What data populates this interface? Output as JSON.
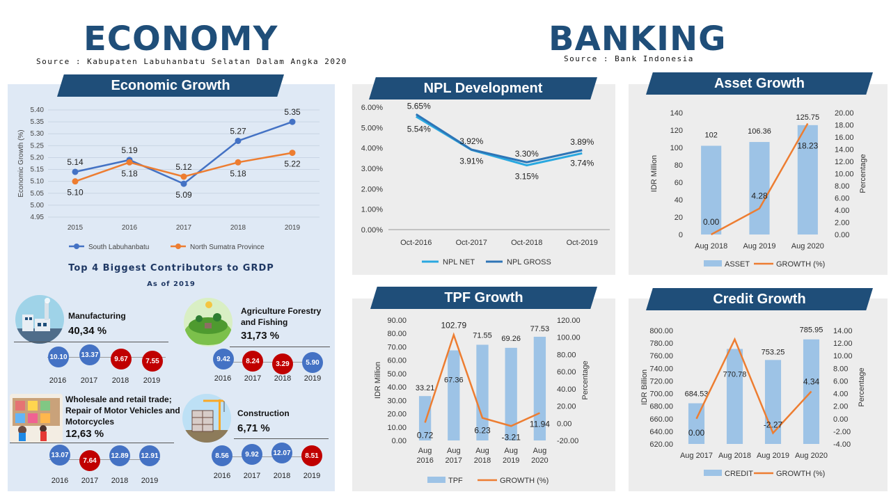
{
  "economy": {
    "title": "ECONOMY",
    "source": "Source : Kabupaten Labuhanbatu Selatan Dalam Angka 2020",
    "growth_banner": "Economic Growth",
    "contributors_title": "Top 4 Biggest Contributors to GRDP",
    "contributors_subtitle": "As of 2019",
    "contributors": [
      {
        "name": "Manufacturing",
        "pct": "40,34 %",
        "icon": "factory-icon",
        "values": [
          "10.10",
          "13.37",
          "9.67",
          "7.55"
        ],
        "colors": [
          "blue",
          "blue",
          "red",
          "red"
        ],
        "years": [
          "2016",
          "2017",
          "2018",
          "2019"
        ]
      },
      {
        "name": "Agriculture Forestry and Fishing",
        "pct": "31,73 %",
        "icon": "farm-icon",
        "values": [
          "9.42",
          "8.24",
          "3.29",
          "5.90"
        ],
        "colors": [
          "blue",
          "red",
          "red",
          "blue"
        ],
        "years": [
          "2016",
          "2017",
          "2018",
          "2019"
        ]
      },
      {
        "name": "Wholesale and retail trade; Repair of Motor Vehicles and Motorcycles",
        "pct": "12,63 %",
        "icon": "shop-icon",
        "values": [
          "13.07",
          "7.64",
          "12.89",
          "12.91"
        ],
        "colors": [
          "blue",
          "red",
          "blue",
          "blue"
        ],
        "years": [
          "2016",
          "2017",
          "2018",
          "2019"
        ]
      },
      {
        "name": "Construction",
        "pct": "6,71 %",
        "icon": "construction-icon",
        "values": [
          "8.56",
          "9.92",
          "12.07",
          "8.51"
        ],
        "colors": [
          "blue",
          "blue",
          "blue",
          "red"
        ],
        "years": [
          "2016",
          "2017",
          "2018",
          "2019"
        ]
      }
    ]
  },
  "banking": {
    "title": "BANKING",
    "source": "Source : Bank Indonesia",
    "npl_banner": "NPL Development",
    "asset_banner": "Asset Growth",
    "tpf_banner": "TPF Growth",
    "credit_banner": "Credit Growth"
  },
  "colors": {
    "navy": "#1f4e79",
    "blue": "#4472c4",
    "orange": "#ed7d31",
    "lightblue": "#9dc3e6",
    "cyan": "#29a8e0",
    "red": "#c00000"
  },
  "chart_data": [
    {
      "id": "economic-growth",
      "type": "line",
      "x": [
        "2015",
        "2016",
        "2017",
        "2018",
        "2019"
      ],
      "ylabel": "Economic Growth (%)",
      "ylim": [
        4.95,
        5.4
      ],
      "yticks": [
        "5.40",
        "5.35",
        "5.30",
        "5.25",
        "5.20",
        "5.15",
        "5.10",
        "5.05",
        "5.00",
        "4.95"
      ],
      "grid": true,
      "legend": "bottom",
      "series": [
        {
          "name": "South Labuhanbatu",
          "values": [
            5.14,
            5.19,
            5.09,
            5.27,
            5.35
          ],
          "labels": [
            "5.14",
            "5.19",
            "5.09",
            "5.27",
            "5.35"
          ],
          "color": "#4472c4"
        },
        {
          "name": "North Sumatra Province",
          "values": [
            5.1,
            5.18,
            5.12,
            5.18,
            5.22
          ],
          "labels": [
            "5.10",
            "5.18",
            "5.12",
            "5.18",
            "5.22"
          ],
          "color": "#ed7d31"
        }
      ]
    },
    {
      "id": "npl",
      "type": "line",
      "x": [
        "Oct-2016",
        "Oct-2017",
        "Oct-2018",
        "Oct-2019"
      ],
      "ylim": [
        0,
        6
      ],
      "yticks": [
        "6.00%",
        "5.00%",
        "4.00%",
        "3.00%",
        "2.00%",
        "1.00%",
        "0.00%"
      ],
      "legend": "bottom",
      "series": [
        {
          "name": "NPL NET",
          "values": [
            5.54,
            3.91,
            3.15,
            3.74
          ],
          "labels": [
            "5.54%",
            "3.91%",
            "3.15%",
            "3.74%"
          ],
          "color": "#29a8e0"
        },
        {
          "name": "NPL GROSS",
          "values": [
            5.65,
            3.92,
            3.3,
            3.89
          ],
          "labels": [
            "5.65%",
            "3.92%",
            "3.30%",
            "3.89%"
          ],
          "color": "#2e75b6"
        }
      ]
    },
    {
      "id": "asset",
      "type": "bar",
      "categories": [
        "Aug 2018",
        "Aug 2019",
        "Aug 2020"
      ],
      "ylabel": "IDR Million",
      "y2label": "Percentage",
      "ylim": [
        0,
        140
      ],
      "y2lim": [
        0,
        20
      ],
      "yticks": [
        "140",
        "120",
        "100",
        "80",
        "60",
        "40",
        "20",
        "0"
      ],
      "y2ticks": [
        "20.00",
        "18.00",
        "16.00",
        "14.00",
        "12.00",
        "10.00",
        "8.00",
        "6.00",
        "4.00",
        "2.00",
        "0.00"
      ],
      "legend": "bottom",
      "series": [
        {
          "name": "ASSET",
          "values": [
            102,
            106.36,
            125.75
          ],
          "labels": [
            "102",
            "106.36",
            "125.75"
          ]
        },
        {
          "name": "GROWTH (%)",
          "values": [
            0.0,
            4.28,
            18.23
          ],
          "labels": [
            "0.00",
            "4.28",
            "18.23"
          ]
        }
      ]
    },
    {
      "id": "tpf",
      "type": "bar",
      "categories": [
        "Aug 2016",
        "Aug 2017",
        "Aug 2018",
        "Aug 2019",
        "Aug 2020"
      ],
      "ylabel": "IDR Million",
      "y2label": "Percentage",
      "ylim": [
        0,
        90
      ],
      "y2lim": [
        -20,
        120
      ],
      "yticks": [
        "90.00",
        "80.00",
        "70.00",
        "60.00",
        "50.00",
        "40.00",
        "30.00",
        "20.00",
        "10.00",
        "0.00"
      ],
      "y2ticks": [
        "120.00",
        "100.00",
        "80.00",
        "60.00",
        "40.00",
        "20.00",
        "0.00",
        "-20.00"
      ],
      "legend": "bottom",
      "series": [
        {
          "name": "TPF",
          "values": [
            33.21,
            67.36,
            71.55,
            69.26,
            77.53
          ],
          "labels": [
            "33.21",
            "67.36",
            "71.55",
            "69.26",
            "77.53"
          ]
        },
        {
          "name": "GROWTH (%)",
          "values": [
            0.72,
            102.79,
            6.23,
            -3.21,
            11.94
          ],
          "labels": [
            "0.72",
            "102.79",
            "6.23",
            "-3.21",
            "11.94"
          ]
        }
      ]
    },
    {
      "id": "credit",
      "type": "bar",
      "categories": [
        "Aug 2017",
        "Aug 2018",
        "Aug 2019",
        "Aug 2020"
      ],
      "ylabel": "IDR Billion",
      "y2label": "Percentage",
      "ylim": [
        620,
        800
      ],
      "y2lim": [
        -4,
        14
      ],
      "yticks": [
        "800.00",
        "780.00",
        "760.00",
        "740.00",
        "720.00",
        "700.00",
        "680.00",
        "660.00",
        "640.00",
        "620.00"
      ],
      "y2ticks": [
        "14.00",
        "12.00",
        "10.00",
        "8.00",
        "6.00",
        "4.00",
        "2.00",
        "0.00",
        "-2.00",
        "-4.00"
      ],
      "legend": "bottom",
      "series": [
        {
          "name": "CREDIT",
          "values": [
            684.53,
            770.78,
            753.25,
            785.95
          ],
          "labels": [
            "684.53",
            "770.78",
            "753.25",
            "785.95"
          ]
        },
        {
          "name": "GROWTH (%)",
          "values": [
            0.0,
            12.6,
            -2.27,
            4.34
          ],
          "labels": [
            "0.00",
            "12.60",
            "-2.27",
            "4.34"
          ]
        }
      ]
    }
  ]
}
